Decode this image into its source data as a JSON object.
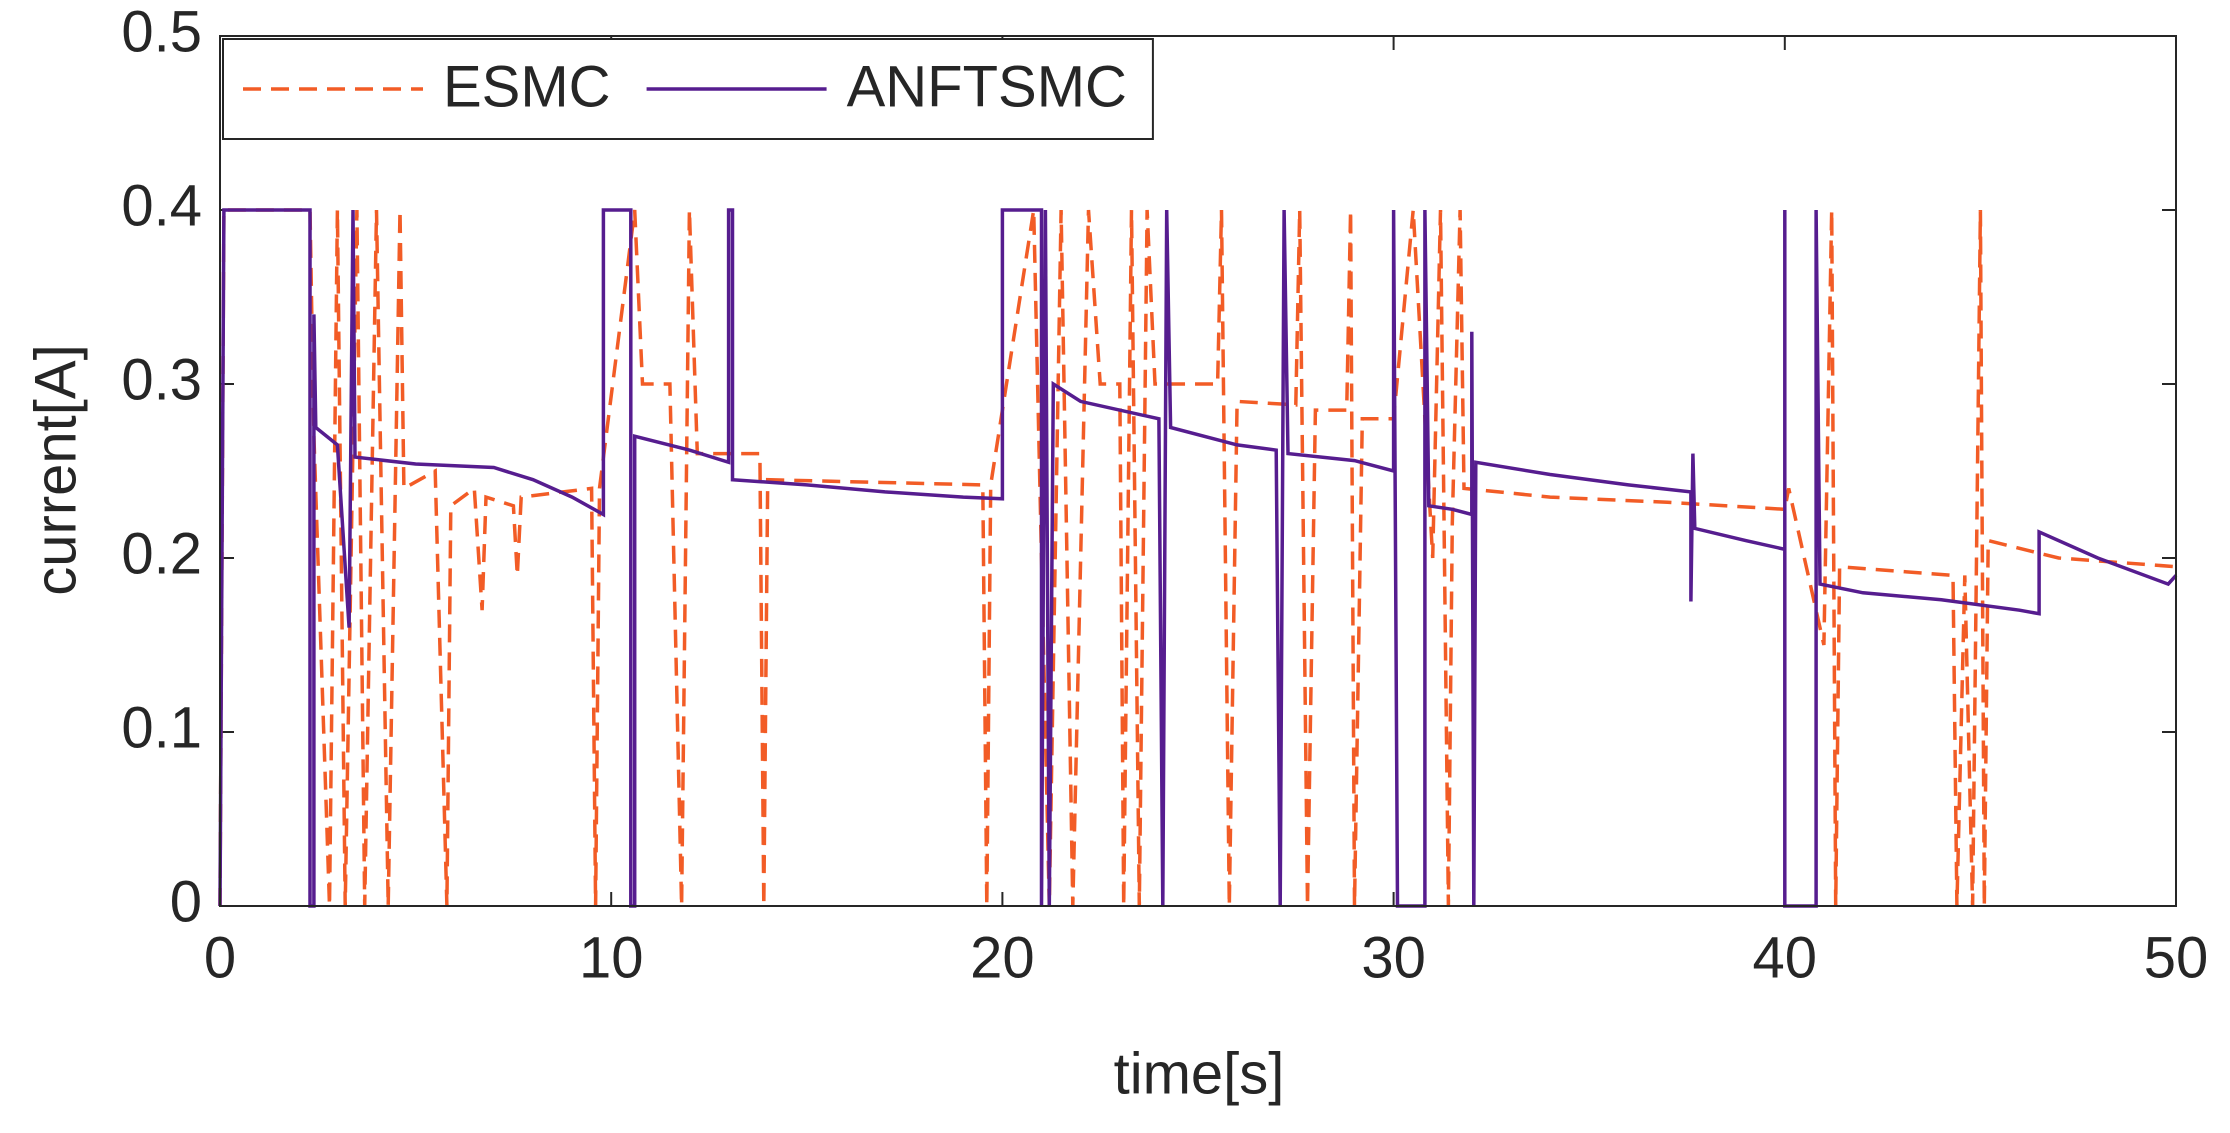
{
  "chart_data": {
    "type": "line",
    "xlabel": "time[s]",
    "ylabel": "current[A]",
    "xlim": [
      0,
      50
    ],
    "ylim": [
      0,
      0.5
    ],
    "xticks": [
      0,
      10,
      20,
      30,
      40,
      50
    ],
    "yticks": [
      0,
      0.1,
      0.2,
      0.3,
      0.4,
      0.5
    ],
    "grid": false,
    "legend": "top-left",
    "series": [
      {
        "name": "ESMC",
        "color": "#f25c26",
        "style": "dashed",
        "x": [
          0,
          0.1,
          2.3,
          2.4,
          2.8,
          3.0,
          3.2,
          3.5,
          3.7,
          4.0,
          4.3,
          4.6,
          4.7,
          5.5,
          5.8,
          5.9,
          6.5,
          6.7,
          6.8,
          7.5,
          7.6,
          7.7,
          9.5,
          9.6,
          9.7,
          10.6,
          10.8,
          11.5,
          11.8,
          12,
          12.2,
          13.8,
          13.9,
          14,
          19.5,
          19.6,
          19.7,
          20.8,
          21.2,
          21.5,
          21.8,
          22.2,
          22.5,
          23,
          23.1,
          23.3,
          23.5,
          23.7,
          23.9,
          25.5,
          25.6,
          25.8,
          26,
          27.5,
          27.6,
          27.8,
          28,
          28.8,
          28.9,
          29,
          29.2,
          30,
          30.5,
          31,
          31.2,
          31.4,
          31.5,
          31.7,
          31.8,
          34,
          37,
          40,
          40.1,
          41,
          41.2,
          41.3,
          41.4,
          44.3,
          44.4,
          44.6,
          44.8,
          45,
          45.1,
          45.2,
          47,
          50
        ],
        "values": [
          0,
          0.4,
          0.4,
          0.27,
          0,
          0.4,
          0,
          0.4,
          0,
          0.4,
          0,
          0.4,
          0.24,
          0.25,
          0,
          0.23,
          0.24,
          0.17,
          0.235,
          0.23,
          0.19,
          0.235,
          0.24,
          0,
          0.24,
          0.4,
          0.3,
          0.3,
          0,
          0.4,
          0.26,
          0.26,
          0,
          0.245,
          0.242,
          0,
          0.242,
          0.4,
          0,
          0.4,
          0,
          0.4,
          0.3,
          0.3,
          0,
          0.4,
          0,
          0.4,
          0.3,
          0.3,
          0.4,
          0,
          0.29,
          0.288,
          0.4,
          0,
          0.285,
          0.285,
          0.4,
          0,
          0.28,
          0.28,
          0.4,
          0.2,
          0.4,
          0,
          0.22,
          0.4,
          0.24,
          0.235,
          0.232,
          0.228,
          0.24,
          0.15,
          0.4,
          0,
          0.195,
          0.19,
          0,
          0.19,
          0,
          0.4,
          0,
          0.21,
          0.2,
          0.195
        ]
      },
      {
        "name": "ANFTSMC",
        "color": "#561d8f",
        "style": "solid",
        "x": [
          0,
          0.1,
          2.3,
          2.3,
          2.4,
          2.4,
          2.45,
          3,
          3.3,
          3.4,
          3.45,
          5,
          7,
          8,
          9,
          9.8,
          9.8,
          10.5,
          10.5,
          10.6,
          10.6,
          12,
          13,
          13,
          13.1,
          13.1,
          15,
          17,
          19,
          20,
          20,
          21,
          21,
          21.1,
          21.2,
          21.3,
          22,
          24,
          24.1,
          24.2,
          24.3,
          26,
          27,
          27.1,
          27.2,
          27.3,
          29,
          30,
          30,
          30.1,
          30.8,
          30.8,
          30.9,
          31.5,
          32,
          32,
          32.05,
          32.1,
          34,
          36,
          37.6,
          37.6,
          37.65,
          37.7,
          39,
          40,
          40,
          40,
          40.8,
          40.8,
          40.9,
          42,
          44,
          46,
          46.5,
          46.5,
          48,
          49.8,
          50
        ],
        "values": [
          0,
          0.4,
          0.4,
          0,
          0,
          0.34,
          0.275,
          0.265,
          0.16,
          0.4,
          0.258,
          0.254,
          0.252,
          0.245,
          0.235,
          0.225,
          0.4,
          0.4,
          0,
          0,
          0.27,
          0.262,
          0.255,
          0.4,
          0.4,
          0.245,
          0.242,
          0.238,
          0.235,
          0.234,
          0.4,
          0.4,
          0,
          0.4,
          0,
          0.3,
          0.29,
          0.28,
          0,
          0.4,
          0.275,
          0.265,
          0.262,
          0,
          0.4,
          0.26,
          0.256,
          0.25,
          0.4,
          0,
          0,
          0.4,
          0.23,
          0.228,
          0.225,
          0.33,
          0,
          0.255,
          0.248,
          0.242,
          0.238,
          0.175,
          0.26,
          0.217,
          0.21,
          0.205,
          0.4,
          0,
          0,
          0.4,
          0.185,
          0.18,
          0.176,
          0.17,
          0.168,
          0.215,
          0.2,
          0.185,
          0.19
        ]
      }
    ]
  }
}
